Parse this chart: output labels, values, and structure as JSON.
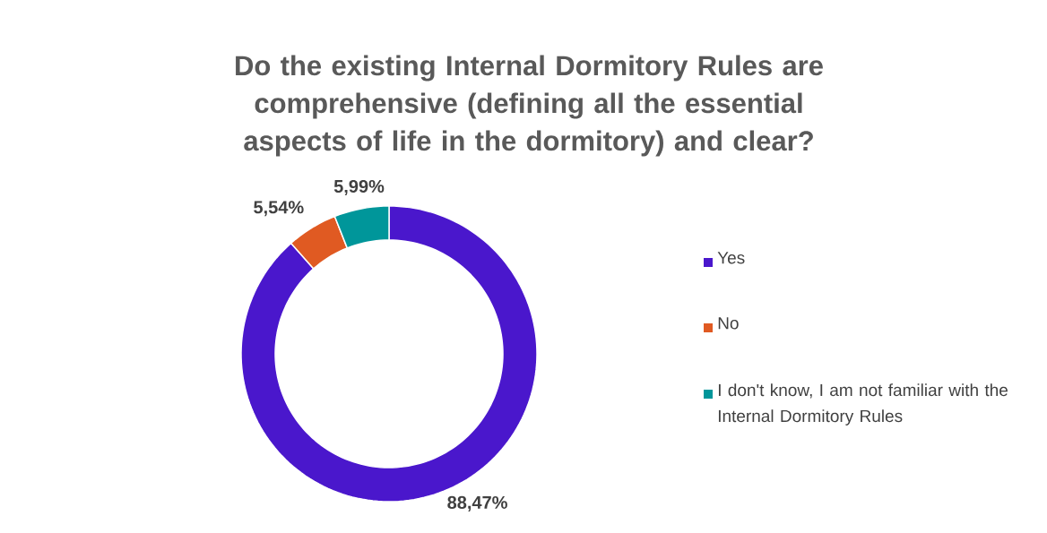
{
  "chart_data": {
    "type": "donut",
    "title": "Do the existing Internal Dormitory Rules are comprehensive (defining all the essential aspects of life in the dormitory) and clear?",
    "categories": [
      "Yes",
      "No",
      "I don't know, I am not familiar with the Internal Dormitory Rules"
    ],
    "values": [
      88.47,
      5.54,
      5.99
    ],
    "colors": [
      "#4a17cc",
      "#e05a22",
      "#00969a"
    ],
    "value_labels": [
      "88,47%",
      "5,54%",
      "5,99%"
    ],
    "legend": "right"
  }
}
